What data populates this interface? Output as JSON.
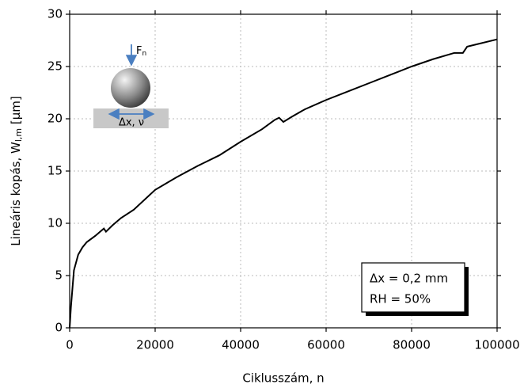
{
  "chart_data": {
    "type": "line",
    "xlabel": "Ciklusszám, n",
    "ylabel": {
      "main": "Lineáris kopás, W",
      "sub": "l,m",
      "unit": "[µm]"
    },
    "x": [
      0,
      300,
      1000,
      2000,
      3000,
      4000,
      6000,
      8000,
      8500,
      10000,
      12000,
      15000,
      20000,
      25000,
      30000,
      35000,
      40000,
      45000,
      48000,
      49000,
      50000,
      52000,
      55000,
      60000,
      65000,
      70000,
      75000,
      80000,
      85000,
      90000,
      92000,
      93000,
      95000,
      100000
    ],
    "series": [
      {
        "color": "#000000",
        "values": [
          0,
          2,
          5.5,
          7,
          7.7,
          8.2,
          8.8,
          9.5,
          9.2,
          9.8,
          10.5,
          11.3,
          13.2,
          14.4,
          15.5,
          16.5,
          17.8,
          19.0,
          19.9,
          20.1,
          19.7,
          20.2,
          20.9,
          21.8,
          22.6,
          23.4,
          24.2,
          25.0,
          25.7,
          26.3,
          26.3,
          26.9,
          27.1,
          27.6
        ]
      }
    ],
    "xlim": [
      0,
      100000
    ],
    "xticks": [
      0,
      20000,
      40000,
      60000,
      80000,
      100000
    ],
    "ylim": [
      0,
      30
    ],
    "yticks": [
      0,
      5,
      10,
      15,
      20,
      25,
      30
    ],
    "grid": true,
    "annotations": [
      "Δx = 0,2 mm",
      "RH = 50%"
    ],
    "inset": {
      "force": "F",
      "force_sub": "n",
      "motion": "Δx, ν"
    }
  }
}
